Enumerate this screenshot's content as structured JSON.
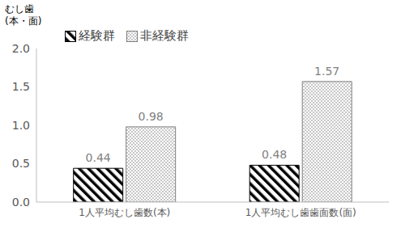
{
  "chart_data": {
    "type": "bar",
    "y_label": [
      "むし歯",
      "(本・面)"
    ],
    "categories": [
      "1人平均むし歯数(本)",
      "1人平均むし歯歯面数(面)"
    ],
    "series": [
      {
        "name": "経験群",
        "color": "#000000",
        "values": [
          0.44,
          0.48
        ]
      },
      {
        "name": "非経験群",
        "color": "#7f7f7f",
        "values": [
          0.98,
          1.57
        ]
      }
    ],
    "ylim": [
      0,
      2
    ],
    "yticks": [
      {
        "value": 0,
        "label": "0.0"
      },
      {
        "value": 0.5,
        "label": "0.5"
      },
      {
        "value": 1,
        "label": "1.0"
      },
      {
        "value": 1.5,
        "label": "1.5"
      },
      {
        "value": 2,
        "label": "2.0"
      }
    ],
    "grid": false,
    "legend": "top-left",
    "data_labels": true
  }
}
